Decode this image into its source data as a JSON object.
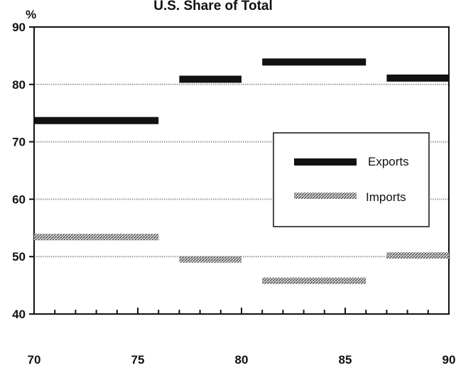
{
  "chart_data": {
    "type": "line",
    "title": "U.S. Share of Total",
    "ylabel": "%",
    "xlabel": "",
    "xlim": [
      70,
      90
    ],
    "ylim": [
      40,
      90
    ],
    "x_ticks": [
      "70",
      "75",
      "80",
      "85",
      "90"
    ],
    "y_ticks": [
      "40",
      "50",
      "60",
      "70",
      "80",
      "90"
    ],
    "gridlines_y": [
      50,
      60,
      70,
      80
    ],
    "legend": {
      "position": "center-right",
      "entries": [
        "Exports",
        "Imports"
      ]
    },
    "series": [
      {
        "name": "Exports",
        "style": "solid",
        "color": "#111111",
        "segments": [
          {
            "x": [
              70,
              76
            ],
            "y": 73.7
          },
          {
            "x": [
              77,
              80
            ],
            "y": 80.9
          },
          {
            "x": [
              81,
              86
            ],
            "y": 83.9
          },
          {
            "x": [
              87,
              90
            ],
            "y": 81.1
          }
        ]
      },
      {
        "name": "Imports",
        "style": "hatched",
        "color": "#777777",
        "segments": [
          {
            "x": [
              70,
              76
            ],
            "y": 53.4
          },
          {
            "x": [
              77,
              80
            ],
            "y": 49.5
          },
          {
            "x": [
              81,
              86
            ],
            "y": 45.8
          },
          {
            "x": [
              87,
              90
            ],
            "y": 50.2
          }
        ]
      }
    ]
  }
}
